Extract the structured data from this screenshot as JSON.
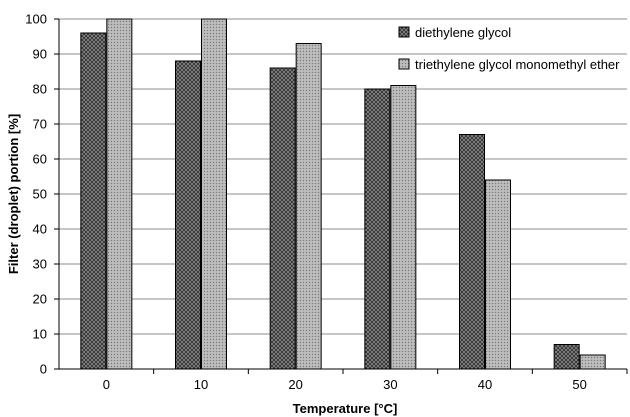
{
  "chart_data": {
    "type": "bar",
    "categories": [
      "0",
      "10",
      "20",
      "30",
      "40",
      "50"
    ],
    "series": [
      {
        "name": "diethylene glycol",
        "values": [
          96,
          88,
          86,
          80,
          67,
          7
        ],
        "pattern": "crosshatch-dark"
      },
      {
        "name": "triethylene glycol monomethyl ether",
        "values": [
          100,
          100,
          93,
          81,
          54,
          4
        ],
        "pattern": "dots-light"
      }
    ],
    "xlabel": "Temperature [°C]",
    "ylabel": "Filter (droplet) portion [%]",
    "ylim": [
      0,
      100
    ],
    "yticks": [
      "0",
      "10",
      "20",
      "30",
      "40",
      "50",
      "60",
      "70",
      "80",
      "90",
      "100"
    ],
    "grid": true,
    "legend_position": "top-right"
  }
}
